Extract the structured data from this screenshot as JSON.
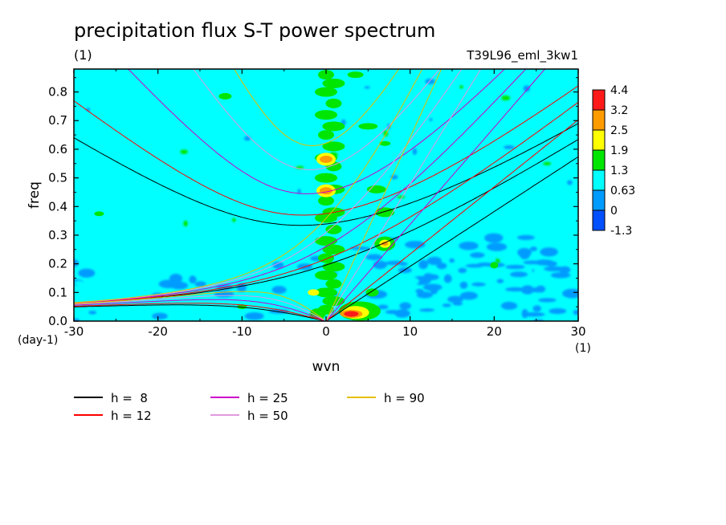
{
  "chart_data": {
    "type": "heatmap",
    "title": "precipitation flux S-T power spectrum",
    "units_label": "(1)",
    "run_label": "T39L96_eml_3kw1",
    "xlabel": "wvn",
    "ylabel": "freq",
    "x_unit_label": "(1)",
    "y_unit_label": "(day-1)",
    "xlim": [
      -30,
      30
    ],
    "ylim": [
      0,
      0.88
    ],
    "x_ticks": [
      -30,
      -20,
      -10,
      0,
      10,
      20,
      30
    ],
    "y_ticks": [
      0.0,
      0.1,
      0.2,
      0.3,
      0.4,
      0.5,
      0.6,
      0.7,
      0.8
    ],
    "x_tick_labels": [
      "-30",
      "-20",
      "-10",
      "0",
      "10",
      "20",
      "30"
    ],
    "y_tick_labels": [
      "0.0",
      "0.1",
      "0.2",
      "0.3",
      "0.4",
      "0.5",
      "0.6",
      "0.7",
      "0.8"
    ],
    "colorbar": {
      "levels": [
        "4.4",
        "3.2",
        "2.5",
        "1.9",
        "1.3",
        "0.63",
        "0",
        "-1.3"
      ],
      "colors": [
        "#ff1a1a",
        "#ff9b00",
        "#ffff00",
        "#00e600",
        "#00ffff",
        "#009bff",
        "#0050ff"
      ]
    },
    "background_level_color": "#00ffff",
    "features": [
      {
        "x": 3,
        "y": 0.025,
        "level": 5
      },
      {
        "x": 0,
        "y": 0.565,
        "level": 3
      },
      {
        "x": 0,
        "y": 0.455,
        "level": 3
      },
      {
        "x": 7,
        "y": 0.27,
        "level": 2
      },
      {
        "x": -10,
        "y": 0.05,
        "level": 2
      },
      {
        "x": -2,
        "y": 0.1,
        "level": 2
      },
      {
        "x": 20,
        "y": 0.2,
        "level": 1
      }
    ],
    "dispersion_curves": [
      {
        "h": 8,
        "label": "h =  8",
        "color": "#000000"
      },
      {
        "h": 12,
        "label": "h = 12",
        "color": "#ff0000"
      },
      {
        "h": 25,
        "label": "h = 25",
        "color": "#cc00cc"
      },
      {
        "h": 50,
        "label": "h = 50",
        "color": "#e09ae0"
      },
      {
        "h": 90,
        "label": "h = 90",
        "color": "#e6c000"
      }
    ]
  }
}
